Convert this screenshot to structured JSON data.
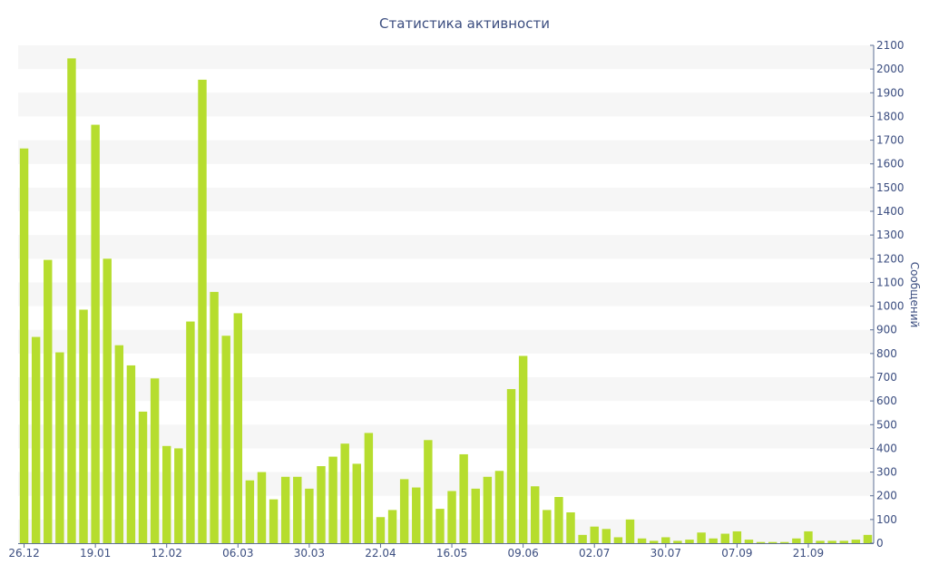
{
  "chart_data": {
    "type": "bar",
    "title": "Статистика активности",
    "ylabel": "Сообщений",
    "xlabel": "",
    "y_axis_position": "right",
    "ylim": [
      0,
      2100
    ],
    "yticks": [
      0,
      100,
      200,
      300,
      400,
      500,
      600,
      700,
      800,
      900,
      1000,
      1100,
      1200,
      1300,
      1400,
      1500,
      1600,
      1700,
      1800,
      1900,
      2000,
      2100
    ],
    "grid": "alternating horizontal bands",
    "legend": "none",
    "x_tick_labels": [
      {
        "index": 0,
        "label": "26.12"
      },
      {
        "index": 6,
        "label": "19.01"
      },
      {
        "index": 12,
        "label": "12.02"
      },
      {
        "index": 18,
        "label": "06.03"
      },
      {
        "index": 24,
        "label": "30.03"
      },
      {
        "index": 30,
        "label": "22.04"
      },
      {
        "index": 36,
        "label": "16.05"
      },
      {
        "index": 42,
        "label": "09.06"
      },
      {
        "index": 48,
        "label": "02.07"
      },
      {
        "index": 54,
        "label": "30.07"
      },
      {
        "index": 60,
        "label": "07.09"
      },
      {
        "index": 66,
        "label": "21.09"
      }
    ],
    "values": [
      1665,
      870,
      1195,
      805,
      2045,
      985,
      1765,
      1200,
      835,
      750,
      555,
      695,
      410,
      400,
      935,
      1955,
      1060,
      875,
      970,
      265,
      300,
      185,
      280,
      280,
      230,
      325,
      365,
      420,
      335,
      465,
      110,
      140,
      270,
      235,
      435,
      145,
      220,
      375,
      230,
      280,
      305,
      650,
      790,
      240,
      140,
      195,
      130,
      35,
      70,
      60,
      25,
      100,
      20,
      10,
      25,
      10,
      15,
      45,
      20,
      40,
      50,
      15,
      5,
      5,
      5,
      20,
      50,
      10,
      10,
      10,
      15,
      35
    ],
    "colors": {
      "bar": "#b6dd2e",
      "title": "#3c4e80",
      "axis_text": "#3c4e80",
      "axis_line": "#5c6f95",
      "band": "#f6f6f6"
    }
  }
}
